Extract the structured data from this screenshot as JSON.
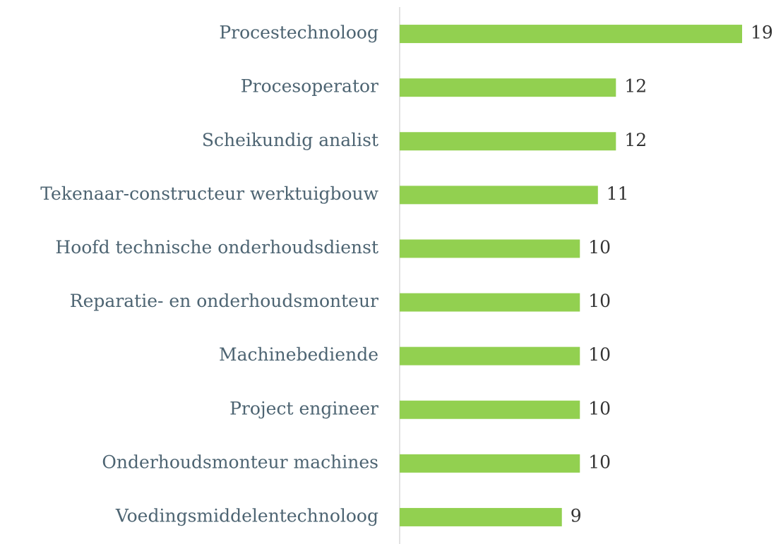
{
  "chart_data": {
    "type": "bar",
    "orientation": "horizontal",
    "categories": [
      "Procestechnoloog",
      "Procesoperator",
      "Scheikundig analist",
      "Tekenaar-constructeur werktuigbouw",
      "Hoofd technische onderhoudsdienst",
      "Reparatie- en onderhoudsmonteur",
      "Machinebediende",
      "Project engineer",
      "Onderhoudsmonteur machines",
      "Voedingsmiddelentechnoloog"
    ],
    "values": [
      19,
      12,
      12,
      11,
      10,
      10,
      10,
      10,
      10,
      9
    ],
    "color": "#92d050",
    "data_labels": true
  }
}
